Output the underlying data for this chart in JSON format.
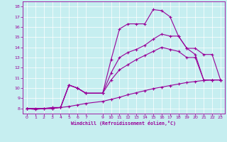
{
  "xlabel": "Windchill (Refroidissement éolien,°C)",
  "bg_color": "#c6eef0",
  "line_color": "#990099",
  "grid_color": "#ffffff",
  "xlim": [
    -0.5,
    23.5
  ],
  "ylim": [
    7.5,
    18.5
  ],
  "xticks": [
    0,
    1,
    2,
    3,
    4,
    5,
    6,
    7,
    9,
    10,
    11,
    12,
    13,
    14,
    15,
    16,
    17,
    18,
    19,
    20,
    21,
    22,
    23
  ],
  "yticks": [
    8,
    9,
    10,
    11,
    12,
    13,
    14,
    15,
    16,
    17,
    18
  ],
  "curve1_x": [
    0,
    1,
    2,
    3,
    4,
    5,
    6,
    7,
    9,
    10,
    11,
    12,
    13,
    14,
    15,
    16,
    17,
    18,
    19,
    20,
    21,
    22,
    23
  ],
  "curve1_y": [
    8.0,
    7.9,
    8.0,
    8.1,
    8.1,
    10.3,
    10.0,
    9.5,
    9.5,
    12.8,
    15.8,
    16.3,
    16.3,
    16.3,
    17.7,
    17.6,
    17.0,
    15.1,
    13.9,
    13.3,
    10.8,
    10.8,
    10.8
  ],
  "curve2_x": [
    0,
    3,
    4,
    5,
    6,
    7,
    9,
    10,
    11,
    12,
    13,
    14,
    15,
    16,
    17,
    18,
    19,
    20,
    21,
    22,
    23
  ],
  "curve2_y": [
    8.0,
    8.0,
    8.1,
    10.3,
    10.0,
    9.5,
    9.5,
    11.5,
    13.0,
    13.5,
    13.8,
    14.2,
    14.8,
    15.3,
    15.1,
    15.1,
    13.9,
    13.9,
    13.3,
    13.3,
    10.8
  ],
  "curve3_x": [
    0,
    3,
    4,
    5,
    6,
    7,
    9,
    10,
    11,
    12,
    13,
    14,
    15,
    16,
    17,
    18,
    19,
    20,
    21,
    22,
    23
  ],
  "curve3_y": [
    8.0,
    8.0,
    8.1,
    10.3,
    10.0,
    9.5,
    9.5,
    10.8,
    11.8,
    12.3,
    12.8,
    13.2,
    13.6,
    14.0,
    13.8,
    13.6,
    13.0,
    13.0,
    10.8,
    10.8,
    10.8
  ],
  "curve4_x": [
    0,
    1,
    2,
    3,
    4,
    5,
    6,
    7,
    9,
    10,
    11,
    12,
    13,
    14,
    15,
    16,
    17,
    18,
    19,
    20,
    21,
    22,
    23
  ],
  "curve4_y": [
    8.0,
    8.0,
    8.0,
    8.05,
    8.1,
    8.2,
    8.35,
    8.5,
    8.7,
    8.9,
    9.1,
    9.35,
    9.55,
    9.75,
    9.95,
    10.1,
    10.25,
    10.4,
    10.55,
    10.65,
    10.75,
    10.8,
    10.8
  ]
}
